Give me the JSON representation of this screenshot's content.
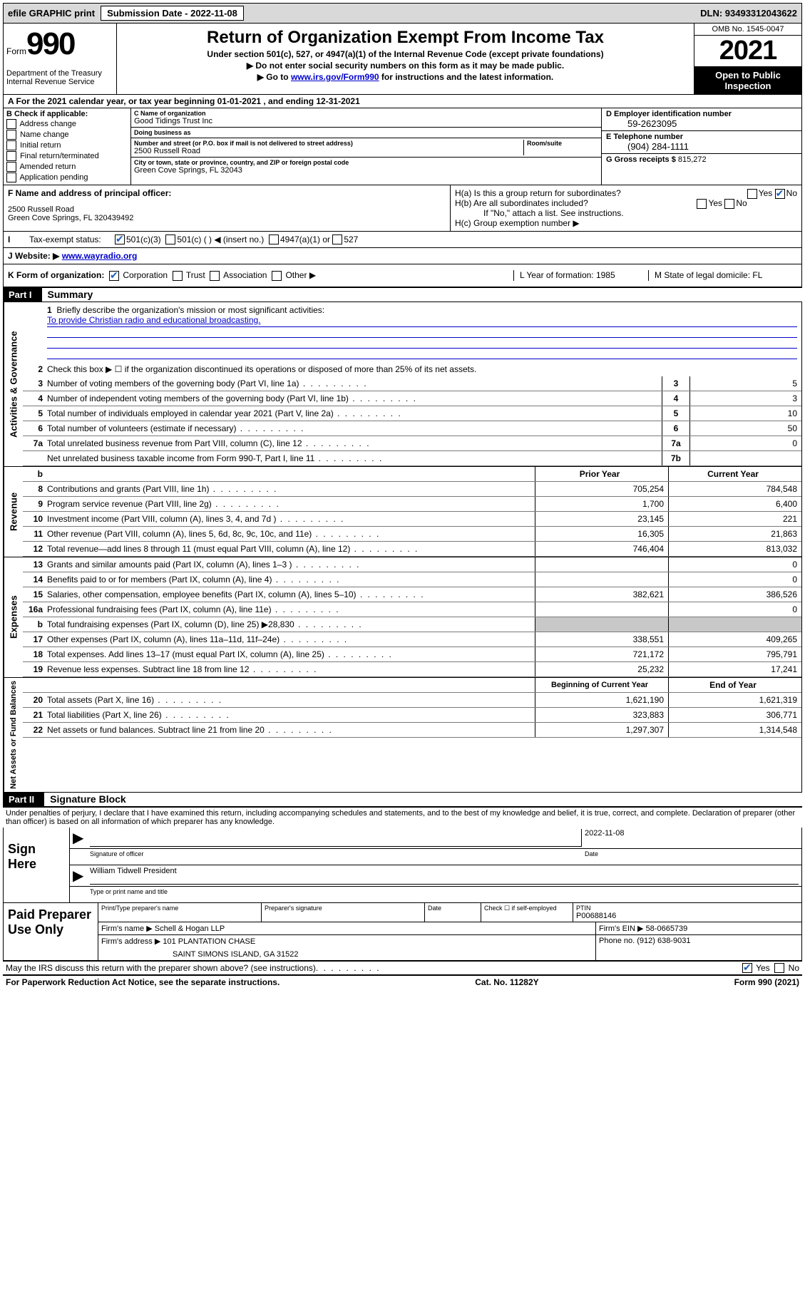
{
  "topbar": {
    "efile": "efile GRAPHIC print",
    "sub_label": "Submission Date - 2022-11-08",
    "dln": "DLN: 93493312043622"
  },
  "header": {
    "form_prefix": "Form",
    "form_number": "990",
    "dept": "Department of the Treasury",
    "irs": "Internal Revenue Service",
    "title": "Return of Organization Exempt From Income Tax",
    "sub1": "Under section 501(c), 527, or 4947(a)(1) of the Internal Revenue Code (except private foundations)",
    "sub2": "Do not enter social security numbers on this form as it may be made public.",
    "sub3_prefix": "Go to ",
    "sub3_link": "www.irs.gov/Form990",
    "sub3_suffix": " for instructions and the latest information.",
    "omb": "OMB No. 1545-0047",
    "year": "2021",
    "inspection": "Open to Public Inspection"
  },
  "line_a": "A For the 2021 calendar year, or tax year beginning 01-01-2021   , and ending 12-31-2021",
  "col_b": {
    "title": "B Check if applicable:",
    "items": [
      "Address change",
      "Name change",
      "Initial return",
      "Final return/terminated",
      "Amended return",
      "Application pending"
    ]
  },
  "col_c": {
    "name_label": "C Name of organization",
    "name": "Good Tidings Trust Inc",
    "dba_label": "Doing business as",
    "dba": "",
    "street_label": "Number and street (or P.O. box if mail is not delivered to street address)",
    "room_label": "Room/suite",
    "street": "2500 Russell Road",
    "city_label": "City or town, state or province, country, and ZIP or foreign postal code",
    "city": "Green Cove Springs, FL  32043"
  },
  "col_de": {
    "d_label": "D Employer identification number",
    "d_val": "59-2623095",
    "e_label": "E Telephone number",
    "e_val": "(904) 284-1111",
    "g_label": "G Gross receipts $",
    "g_val": "815,272"
  },
  "row_f": {
    "label": "F Name and address of principal officer:",
    "line1": "2500 Russell Road",
    "line2": "Green Cove Springs, FL  320439492",
    "h_a": "H(a)  Is this a group return for subordinates?",
    "h_a_no": "No",
    "h_b": "H(b)  Are all subordinates included?",
    "h_b_note": "If \"No,\" attach a list. See instructions.",
    "h_c": "H(c)  Group exemption number ▶"
  },
  "row_i": {
    "label": "Tax-exempt status:",
    "opt1": "501(c)(3)",
    "opt2": "501(c) (  ) ◀ (insert no.)",
    "opt3": "4947(a)(1) or",
    "opt4": "527"
  },
  "row_j": {
    "label": "J  Website: ▶ ",
    "val": "www.wayradio.org"
  },
  "row_k": {
    "label": "K Form of organization:",
    "opts": [
      "Corporation",
      "Trust",
      "Association",
      "Other ▶"
    ],
    "l": "L Year of formation: 1985",
    "m": "M State of legal domicile: FL"
  },
  "part1": {
    "header": "Part I",
    "title": "Summary",
    "q1": "Briefly describe the organization's mission or most significant activities:",
    "mission": "To provide Christian radio and educational broadcasting.",
    "q2": "Check this box ▶ ☐  if the organization discontinued its operations or disposed of more than 25% of its net assets.",
    "lines_single": [
      {
        "num": "3",
        "desc": "Number of voting members of the governing body (Part VI, line 1a)",
        "box": "3",
        "val": "5"
      },
      {
        "num": "4",
        "desc": "Number of independent voting members of the governing body (Part VI, line 1b)",
        "box": "4",
        "val": "3"
      },
      {
        "num": "5",
        "desc": "Total number of individuals employed in calendar year 2021 (Part V, line 2a)",
        "box": "5",
        "val": "10"
      },
      {
        "num": "6",
        "desc": "Total number of volunteers (estimate if necessary)",
        "box": "6",
        "val": "50"
      },
      {
        "num": "7a",
        "desc": "Total unrelated business revenue from Part VIII, column (C), line 12",
        "box": "7a",
        "val": "0"
      },
      {
        "num": "",
        "desc": "Net unrelated business taxable income from Form 990-T, Part I, line 11",
        "box": "7b",
        "val": ""
      }
    ],
    "col_headers": {
      "prior": "Prior Year",
      "current": "Current Year"
    },
    "revenue": [
      {
        "num": "8",
        "desc": "Contributions and grants (Part VIII, line 1h)",
        "prior": "705,254",
        "current": "784,548"
      },
      {
        "num": "9",
        "desc": "Program service revenue (Part VIII, line 2g)",
        "prior": "1,700",
        "current": "6,400"
      },
      {
        "num": "10",
        "desc": "Investment income (Part VIII, column (A), lines 3, 4, and 7d )",
        "prior": "23,145",
        "current": "221"
      },
      {
        "num": "11",
        "desc": "Other revenue (Part VIII, column (A), lines 5, 6d, 8c, 9c, 10c, and 11e)",
        "prior": "16,305",
        "current": "21,863"
      },
      {
        "num": "12",
        "desc": "Total revenue—add lines 8 through 11 (must equal Part VIII, column (A), line 12)",
        "prior": "746,404",
        "current": "813,032"
      }
    ],
    "expenses": [
      {
        "num": "13",
        "desc": "Grants and similar amounts paid (Part IX, column (A), lines 1–3 )",
        "prior": "",
        "current": "0"
      },
      {
        "num": "14",
        "desc": "Benefits paid to or for members (Part IX, column (A), line 4)",
        "prior": "",
        "current": "0"
      },
      {
        "num": "15",
        "desc": "Salaries, other compensation, employee benefits (Part IX, column (A), lines 5–10)",
        "prior": "382,621",
        "current": "386,526"
      },
      {
        "num": "16a",
        "desc": "Professional fundraising fees (Part IX, column (A), line 11e)",
        "prior": "",
        "current": "0"
      },
      {
        "num": "b",
        "desc": "Total fundraising expenses (Part IX, column (D), line 25) ▶28,830",
        "prior": "SHADED",
        "current": "SHADED"
      },
      {
        "num": "17",
        "desc": "Other expenses (Part IX, column (A), lines 11a–11d, 11f–24e)",
        "prior": "338,551",
        "current": "409,265"
      },
      {
        "num": "18",
        "desc": "Total expenses. Add lines 13–17 (must equal Part IX, column (A), line 25)",
        "prior": "721,172",
        "current": "795,791"
      },
      {
        "num": "19",
        "desc": "Revenue less expenses. Subtract line 18 from line 12",
        "prior": "25,232",
        "current": "17,241"
      }
    ],
    "net_headers": {
      "prior": "Beginning of Current Year",
      "current": "End of Year"
    },
    "net": [
      {
        "num": "20",
        "desc": "Total assets (Part X, line 16)",
        "prior": "1,621,190",
        "current": "1,621,319"
      },
      {
        "num": "21",
        "desc": "Total liabilities (Part X, line 26)",
        "prior": "323,883",
        "current": "306,771"
      },
      {
        "num": "22",
        "desc": "Net assets or fund balances. Subtract line 21 from line 20",
        "prior": "1,297,307",
        "current": "1,314,548"
      }
    ]
  },
  "part2": {
    "header": "Part II",
    "title": "Signature Block",
    "declaration": "Under penalties of perjury, I declare that I have examined this return, including accompanying schedules and statements, and to the best of my knowledge and belief, it is true, correct, and complete. Declaration of preparer (other than officer) is based on all information of which preparer has any knowledge."
  },
  "sign": {
    "label": "Sign Here",
    "sig_label": "Signature of officer",
    "date_label": "Date",
    "date_val": "2022-11-08",
    "name": "William Tidwell President",
    "name_label": "Type or print name and title"
  },
  "prep": {
    "label": "Paid Preparer Use Only",
    "c1": "Print/Type preparer's name",
    "c2": "Preparer's signature",
    "c3": "Date",
    "c4_label": "Check ☐ if self-employed",
    "c5_label": "PTIN",
    "c5_val": "P00688146",
    "firm_name_label": "Firm's name   ▶",
    "firm_name": "Schell & Hogan LLP",
    "firm_ein_label": "Firm's EIN ▶",
    "firm_ein": "58-0665739",
    "firm_addr_label": "Firm's address ▶",
    "firm_addr1": "101 PLANTATION CHASE",
    "firm_addr2": "SAINT SIMONS ISLAND, GA  31522",
    "phone_label": "Phone no.",
    "phone": "(912) 638-9031"
  },
  "footer": {
    "discuss": "May the IRS discuss this return with the preparer shown above? (see instructions)",
    "yes": "Yes",
    "no": "No",
    "paperwork": "For Paperwork Reduction Act Notice, see the separate instructions.",
    "cat": "Cat. No. 11282Y",
    "form": "Form 990 (2021)"
  },
  "sidetabs": {
    "gov": "Activities & Governance",
    "rev": "Revenue",
    "exp": "Expenses",
    "net": "Net Assets or Fund Balances"
  }
}
